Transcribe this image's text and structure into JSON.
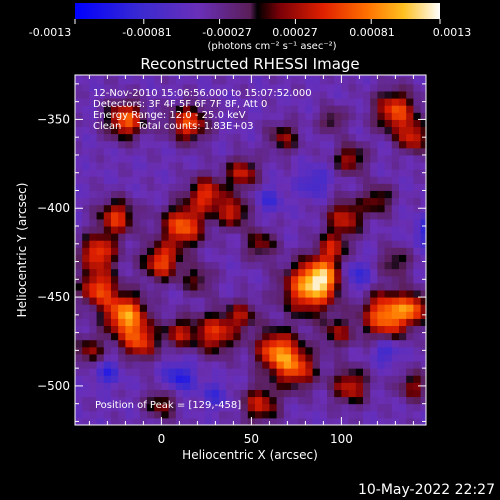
{
  "chart_data": {
    "type": "heatmap",
    "title": "Reconstructed RHESSI Image",
    "xlabel": "Heliocentric X (arcsec)",
    "ylabel": "Heliocentric Y (arcsec)",
    "xlim": [
      -48,
      147
    ],
    "ylim": [
      -522,
      -325
    ],
    "x_ticks": [
      0,
      50,
      100
    ],
    "y_ticks": [
      -350,
      -400,
      -450,
      -500
    ],
    "colorbar": {
      "min": -0.0013,
      "max": 0.0013,
      "tick_values": [
        -0.0013,
        -0.00081,
        -0.00027,
        0.00027,
        0.00081,
        0.0013
      ],
      "tick_labels": [
        "-0.0013",
        "-0.00081",
        "-0.00027",
        "0.00027",
        "0.00081",
        "0.0013"
      ],
      "unit_label": "(photons cm⁻² s⁻¹ asec⁻²)"
    },
    "annotations": [
      "12-Nov-2010 15:06:56.000 to 15:07:52.000",
      "Detectors: 3F 4F 5F 6F 7F 8F, Att 0",
      "Energy Range: 12.0 - 25.0 keV",
      "Clean     Total counts: 1.83E+03"
    ],
    "peak_label": "Position of Peak = [129,-458]",
    "peak": [
      129,
      -458
    ],
    "grid_step_arcsec": 4,
    "background_value": -0.0004,
    "blobs": [
      {
        "x": 125,
        "y": -460,
        "amp": 0.00125,
        "sigma": 9
      },
      {
        "x": 140,
        "y": -456,
        "amp": 0.0009,
        "sigma": 6
      },
      {
        "x": 82,
        "y": -445,
        "amp": 0.0012,
        "sigma": 10
      },
      {
        "x": 90,
        "y": -438,
        "amp": 0.0009,
        "sigma": 7
      },
      {
        "x": 64,
        "y": -480,
        "amp": 0.0011,
        "sigma": 8
      },
      {
        "x": 75,
        "y": -490,
        "amp": 0.0009,
        "sigma": 8
      },
      {
        "x": -20,
        "y": -460,
        "amp": 0.0013,
        "sigma": 8
      },
      {
        "x": -35,
        "y": -445,
        "amp": 0.001,
        "sigma": 7
      },
      {
        "x": -12,
        "y": -475,
        "amp": 0.0009,
        "sigma": 7
      },
      {
        "x": 0,
        "y": -430,
        "amp": 0.001,
        "sigma": 7
      },
      {
        "x": 12,
        "y": -410,
        "amp": 0.0011,
        "sigma": 8
      },
      {
        "x": 25,
        "y": -392,
        "amp": 0.0009,
        "sigma": 7
      },
      {
        "x": 40,
        "y": -402,
        "amp": 0.0008,
        "sigma": 6
      },
      {
        "x": -25,
        "y": -405,
        "amp": 0.0009,
        "sigma": 7
      },
      {
        "x": -35,
        "y": -425,
        "amp": 0.001,
        "sigma": 7
      },
      {
        "x": -20,
        "y": -350,
        "amp": 0.0011,
        "sigma": 7
      },
      {
        "x": 15,
        "y": -352,
        "amp": 0.001,
        "sigma": 7
      },
      {
        "x": 45,
        "y": -380,
        "amp": 0.0008,
        "sigma": 6
      },
      {
        "x": 130,
        "y": -345,
        "amp": 0.001,
        "sigma": 8
      },
      {
        "x": 140,
        "y": -360,
        "amp": 0.0008,
        "sigma": 6
      },
      {
        "x": 105,
        "y": -372,
        "amp": 0.0007,
        "sigma": 6
      },
      {
        "x": 102,
        "y": -405,
        "amp": 0.0008,
        "sigma": 7
      },
      {
        "x": 95,
        "y": -422,
        "amp": 0.0007,
        "sigma": 6
      },
      {
        "x": 120,
        "y": -395,
        "amp": 0.0006,
        "sigma": 6
      },
      {
        "x": 30,
        "y": -470,
        "amp": 0.0009,
        "sigma": 8
      },
      {
        "x": 10,
        "y": -470,
        "amp": 0.0007,
        "sigma": 6
      },
      {
        "x": 45,
        "y": -460,
        "amp": 0.0006,
        "sigma": 6
      },
      {
        "x": 55,
        "y": -420,
        "amp": 0.0006,
        "sigma": 6
      },
      {
        "x": 98,
        "y": -470,
        "amp": 0.0006,
        "sigma": 6
      },
      {
        "x": 105,
        "y": -500,
        "amp": 0.0008,
        "sigma": 7
      },
      {
        "x": 140,
        "y": -500,
        "amp": 0.0006,
        "sigma": 6
      },
      {
        "x": 55,
        "y": -510,
        "amp": 0.0008,
        "sigma": 7
      },
      {
        "x": 0,
        "y": -510,
        "amp": 0.0006,
        "sigma": 6
      },
      {
        "x": -40,
        "y": -480,
        "amp": 0.0006,
        "sigma": 6
      },
      {
        "x": 68,
        "y": -360,
        "amp": 0.0006,
        "sigma": 6
      },
      {
        "x": 130,
        "y": -430,
        "amp": 0.0005,
        "sigma": 6
      },
      {
        "x": 20,
        "y": -440,
        "amp": 0.0005,
        "sigma": 6
      },
      {
        "x": 95,
        "y": -350,
        "amp": 0.0005,
        "sigma": 5
      }
    ],
    "dips": [
      {
        "x": 150,
        "y": -413,
        "amp": -0.0006,
        "sigma": 6
      },
      {
        "x": 108,
        "y": -438,
        "amp": -0.0005,
        "sigma": 6
      },
      {
        "x": -30,
        "y": -492,
        "amp": -0.0005,
        "sigma": 5
      },
      {
        "x": 10,
        "y": -495,
        "amp": -0.0006,
        "sigma": 6
      },
      {
        "x": 60,
        "y": -395,
        "amp": -0.0004,
        "sigma": 5
      },
      {
        "x": 125,
        "y": -480,
        "amp": -0.0005,
        "sigma": 5
      },
      {
        "x": 85,
        "y": -385,
        "amp": -0.0004,
        "sigma": 6
      },
      {
        "x": 30,
        "y": -505,
        "amp": -0.0004,
        "sigma": 5
      }
    ]
  },
  "footer_timestamp": "10-May-2022 22:27"
}
